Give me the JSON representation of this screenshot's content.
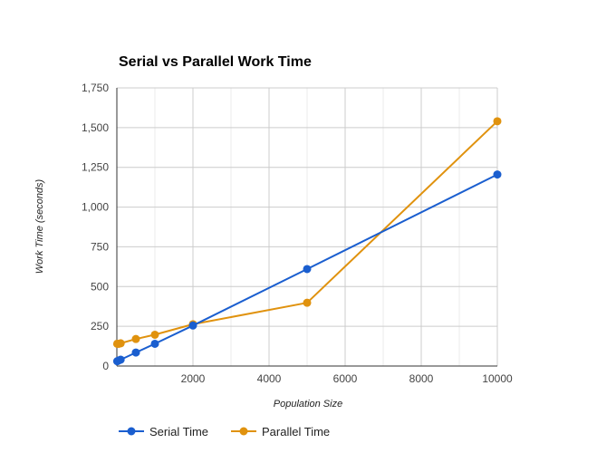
{
  "chart_data": {
    "type": "line",
    "title": "Serial vs Parallel Work Time",
    "xlabel": "Population Size",
    "ylabel": "Work Time (seconds)",
    "xlim": [
      0,
      10000
    ],
    "ylim": [
      0,
      1750
    ],
    "x_ticks": [
      "2000",
      "4000",
      "6000",
      "8000",
      "10000"
    ],
    "y_ticks": [
      "0",
      "250",
      "500",
      "750",
      "1,000",
      "1,250",
      "1,500",
      "1,750"
    ],
    "grid": true,
    "legend_position": "bottom",
    "series": [
      {
        "name": "Serial Time",
        "color": "#1a5ecf",
        "points": [
          [
            10,
            30
          ],
          [
            50,
            35
          ],
          [
            100,
            40
          ],
          [
            500,
            85
          ],
          [
            1000,
            140
          ],
          [
            2000,
            255
          ],
          [
            5000,
            610
          ],
          [
            10000,
            1205
          ]
        ]
      },
      {
        "name": "Parallel Time",
        "color": "#e0920e",
        "points": [
          [
            10,
            140
          ],
          [
            50,
            140
          ],
          [
            100,
            143
          ],
          [
            500,
            170
          ],
          [
            1000,
            197
          ],
          [
            2000,
            263
          ],
          [
            5000,
            398
          ],
          [
            10000,
            1540
          ]
        ]
      }
    ]
  }
}
